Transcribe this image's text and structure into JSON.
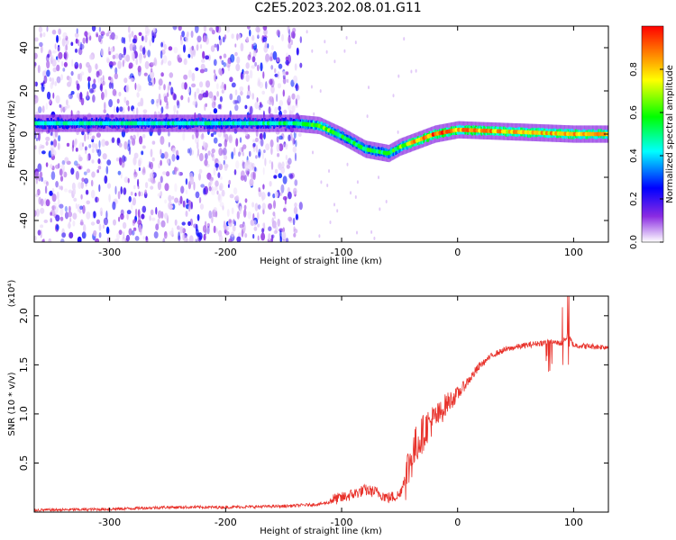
{
  "title": "C2E5.2023.202.08.01.G11",
  "chart_data": [
    {
      "type": "heatmap",
      "xlabel": "Height of straight line (km)",
      "ylabel": "Frequency (Hz)",
      "xlim": [
        -365,
        130
      ],
      "ylim": [
        -50,
        50
      ],
      "xticks": [
        -300,
        -200,
        -100,
        0,
        100
      ],
      "yticks": [
        -40,
        -20,
        0,
        20,
        40
      ],
      "colorbar": {
        "label": "Normalized spectral amplitude",
        "range": [
          0.0,
          1.0
        ],
        "ticks": [
          "0.0",
          "0.2",
          "0.4",
          "0.6",
          "0.8"
        ],
        "colors": [
          "#ffffff",
          "#8a2be2",
          "#0000ff",
          "#00ffff",
          "#00ff00",
          "#ffff00",
          "#ff0000"
        ]
      },
      "ridge": {
        "x": [
          -360,
          -300,
          -200,
          -140,
          -120,
          -100,
          -80,
          -60,
          -50,
          -40,
          -20,
          0,
          50,
          100,
          130
        ],
        "frequency": [
          5,
          5,
          5,
          5,
          4,
          -1,
          -7,
          -9,
          -6,
          -4,
          0,
          2,
          1,
          0,
          0
        ],
        "amplitude": [
          0.45,
          0.45,
          0.45,
          0.5,
          0.65,
          0.55,
          0.55,
          0.55,
          0.6,
          0.8,
          0.9,
          0.85,
          0.8,
          0.8,
          0.8
        ]
      },
      "noise_region_x": [
        -365,
        -135
      ]
    },
    {
      "type": "line",
      "xlabel": "Height of straight line (km)",
      "ylabel": "SNR (10 * v/v)",
      "yscale_note": "(x10⁴)",
      "xlim": [
        -365,
        130
      ],
      "ylim": [
        0,
        2.2
      ],
      "xticks": [
        -300,
        -200,
        -100,
        0,
        100
      ],
      "yticks": [
        0.5,
        1.0,
        1.5,
        2.0
      ],
      "ytick_labels": [
        "0.5",
        "1.0",
        "1.5",
        "2.0"
      ],
      "color": "#e8312a",
      "series": [
        {
          "x": [
            -365,
            -300,
            -250,
            -200,
            -150,
            -120,
            -100,
            -90,
            -80,
            -70,
            -60,
            -50,
            -45,
            -40,
            -35,
            -30,
            -25,
            -20,
            -15,
            -10,
            0,
            10,
            20,
            30,
            40,
            50,
            60,
            70,
            80,
            90,
            95,
            100,
            110,
            130
          ],
          "values": [
            0.02,
            0.03,
            0.05,
            0.05,
            0.06,
            0.08,
            0.12,
            0.16,
            0.2,
            0.18,
            0.12,
            0.15,
            0.35,
            0.55,
            0.7,
            0.8,
            0.9,
            0.95,
            1.0,
            1.1,
            1.2,
            1.35,
            1.5,
            1.6,
            1.65,
            1.68,
            1.7,
            1.72,
            1.73,
            1.72,
            1.8,
            1.7,
            1.69,
            1.68
          ]
        }
      ]
    }
  ]
}
